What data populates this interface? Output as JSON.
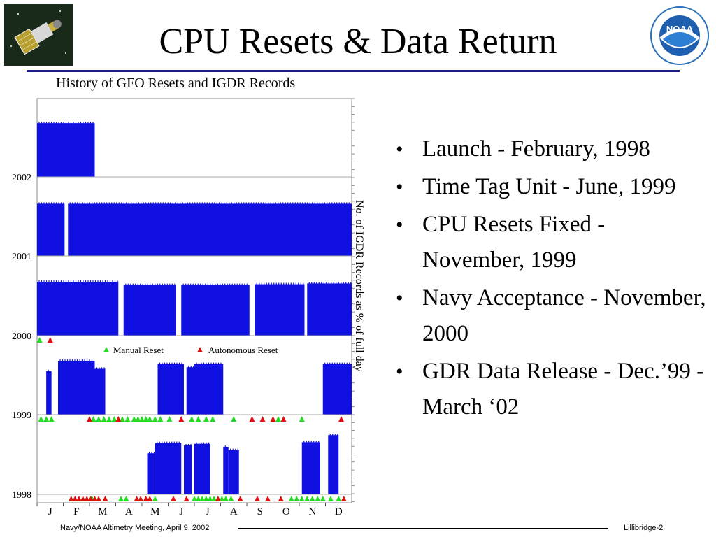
{
  "slide": {
    "title": "CPU Resets & Data Return",
    "bullets": [
      "Launch - February, 1998",
      "Time Tag Unit - June, 1999",
      "CPU Resets Fixed - November, 1999",
      "Navy Acceptance - November, 2000",
      "GDR Data Release - Dec.’99 - March ‘02"
    ],
    "footer_left": "Navy/NOAA Altimetry Meeting, April 9, 2002",
    "footer_right": "Lillibridge-2",
    "logo_right_text": "NOAA"
  },
  "colors": {
    "bar": "#1010e0",
    "manual": "#22dd22",
    "autonomous": "#e01010",
    "rule": "#1a1a8a"
  },
  "chart_data": {
    "type": "bar",
    "title": "History of GFO Resets and IGDR Records",
    "ylabel": "No. of IGDR Records as % of full day",
    "year_labels": [
      "2002",
      "2001",
      "2000",
      "1999",
      "1998"
    ],
    "months": [
      "J",
      "F",
      "M",
      "A",
      "M",
      "J",
      "J",
      "A",
      "S",
      "O",
      "N",
      "D"
    ],
    "legend": {
      "manual": "Manual Reset",
      "autonomous": "Autonomous Reset"
    },
    "series": [
      {
        "year": 2002,
        "segments": [
          [
            0,
            2.2,
            68
          ]
        ]
      },
      {
        "year": 2001,
        "segments": [
          [
            0,
            1.05,
            66
          ],
          [
            1.18,
            12,
            66
          ]
        ]
      },
      {
        "year": 2000,
        "segments": [
          [
            0,
            3.1,
            68
          ],
          [
            3.3,
            5.3,
            64
          ],
          [
            5.5,
            8.1,
            64
          ],
          [
            8.3,
            10.2,
            65
          ],
          [
            10.3,
            12,
            66
          ]
        ]
      },
      {
        "year": 1999,
        "segments": [
          [
            0.35,
            0.55,
            55
          ],
          [
            0.8,
            2.2,
            68
          ],
          [
            2.2,
            2.6,
            58
          ],
          [
            4.6,
            5.6,
            64
          ],
          [
            5.7,
            6.0,
            60
          ],
          [
            6.0,
            7.1,
            64
          ],
          [
            10.9,
            12,
            64
          ]
        ]
      },
      {
        "year": 1998,
        "segments": [
          [
            4.2,
            4.5,
            52
          ],
          [
            4.5,
            5.5,
            65
          ],
          [
            5.6,
            5.9,
            62
          ],
          [
            6.0,
            6.6,
            64
          ],
          [
            7.1,
            7.3,
            60
          ],
          [
            7.3,
            7.7,
            56
          ],
          [
            10.1,
            10.8,
            66
          ],
          [
            11.1,
            11.5,
            75
          ]
        ]
      }
    ],
    "manual_resets": [
      {
        "year": 2000,
        "months": [
          0.1
        ]
      },
      {
        "year": 1999,
        "months": [
          0.15,
          0.35,
          0.55,
          2.15,
          2.35,
          2.55,
          2.75,
          2.95,
          3.25,
          3.45,
          3.7,
          3.85,
          4.0,
          4.15,
          4.3,
          4.5,
          4.7,
          5.05,
          5.9,
          6.15,
          6.45,
          6.7,
          7.5,
          9.2,
          10.1
        ]
      },
      {
        "year": 1998,
        "months": [
          2.1,
          3.2,
          3.4,
          4.5,
          6.0,
          6.15,
          6.3,
          6.45,
          6.6,
          6.75,
          6.9,
          7.05,
          7.2,
          7.4,
          9.7,
          9.9,
          10.1,
          10.3,
          10.5,
          10.7,
          10.9,
          11.2,
          11.5
        ]
      }
    ],
    "autonomous_resets": [
      {
        "year": 2000,
        "months": [
          0.5
        ]
      },
      {
        "year": 1999,
        "months": [
          2.0,
          3.1,
          5.5,
          8.2,
          8.6,
          9.0,
          9.4,
          11.6
        ]
      },
      {
        "year": 1998,
        "months": [
          1.3,
          1.45,
          1.6,
          1.75,
          1.9,
          2.05,
          2.2,
          2.35,
          2.6,
          3.8,
          3.95,
          4.15,
          4.3,
          5.2,
          5.7,
          6.9,
          7.75,
          8.4,
          8.8,
          9.3,
          11.7
        ]
      }
    ]
  }
}
